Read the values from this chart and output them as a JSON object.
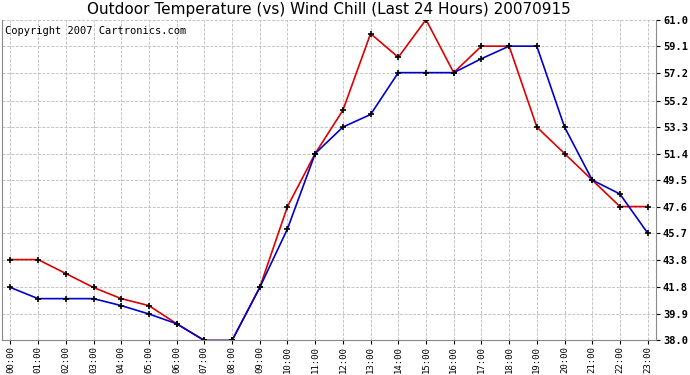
{
  "title": "Outdoor Temperature (vs) Wind Chill (Last 24 Hours) 20070915",
  "copyright": "Copyright 2007 Cartronics.com",
  "x_labels": [
    "00:00",
    "01:00",
    "02:00",
    "03:00",
    "04:00",
    "05:00",
    "06:00",
    "07:00",
    "08:00",
    "09:00",
    "10:00",
    "11:00",
    "12:00",
    "13:00",
    "14:00",
    "15:00",
    "16:00",
    "17:00",
    "18:00",
    "19:00",
    "20:00",
    "21:00",
    "22:00",
    "23:00"
  ],
  "temp_red": [
    43.8,
    43.8,
    42.8,
    41.8,
    41.0,
    40.5,
    39.2,
    38.0,
    38.0,
    41.8,
    47.6,
    51.4,
    54.5,
    60.0,
    58.3,
    61.0,
    57.2,
    59.1,
    59.1,
    53.3,
    51.4,
    49.5,
    47.6,
    47.6
  ],
  "temp_blue": [
    41.8,
    41.0,
    41.0,
    41.0,
    40.5,
    39.9,
    39.2,
    38.0,
    38.0,
    41.8,
    46.0,
    51.4,
    53.3,
    54.2,
    57.2,
    57.2,
    57.2,
    58.2,
    59.1,
    59.1,
    53.3,
    49.5,
    48.5,
    45.7
  ],
  "y_ticks": [
    38.0,
    39.9,
    41.8,
    43.8,
    45.7,
    47.6,
    49.5,
    51.4,
    53.3,
    55.2,
    57.2,
    59.1,
    61.0
  ],
  "y_min": 38.0,
  "y_max": 61.0,
  "red_color": "#dd0000",
  "blue_color": "#0000cc",
  "bg_color": "#ffffff",
  "grid_color": "#bbbbbb",
  "title_fontsize": 11,
  "copyright_fontsize": 7.5
}
